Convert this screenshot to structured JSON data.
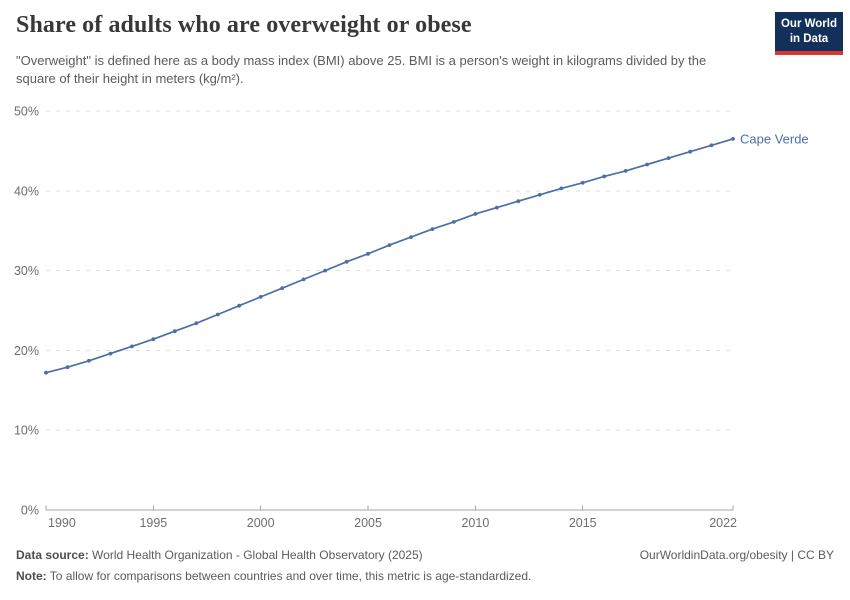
{
  "header": {
    "title": "Share of adults who are overweight or obese",
    "subtitle": "\"Overweight\" is defined here as a body mass index (BMI) above 25. BMI is a person's weight in kilograms divided by the square of their height in meters (kg/m²).",
    "logo": {
      "line1": "Our World",
      "line2": "in Data"
    }
  },
  "chart_data": {
    "type": "line",
    "title": "Share of adults who are overweight or obese",
    "xlabel": "",
    "ylabel": "",
    "xlim": [
      1990,
      2022
    ],
    "ylim": [
      0,
      50
    ],
    "grid": "horizontal-dashed",
    "legend_position": "end-of-line-label",
    "x_ticks": [
      1990,
      1995,
      2000,
      2005,
      2010,
      2015,
      2022
    ],
    "y_ticks": [
      0,
      10,
      20,
      30,
      40,
      50
    ],
    "y_tick_suffix": "%",
    "series": [
      {
        "name": "Cape Verde",
        "color": "#4C6EA8",
        "x": [
          1990,
          1991,
          1992,
          1993,
          1994,
          1995,
          1996,
          1997,
          1998,
          1999,
          2000,
          2001,
          2002,
          2003,
          2004,
          2005,
          2006,
          2007,
          2008,
          2009,
          2010,
          2011,
          2012,
          2013,
          2014,
          2015,
          2016,
          2017,
          2018,
          2019,
          2020,
          2021,
          2022
        ],
        "values": [
          17.2,
          17.9,
          18.7,
          19.6,
          20.5,
          21.4,
          22.4,
          23.4,
          24.5,
          25.6,
          26.7,
          27.8,
          28.9,
          30.0,
          31.1,
          32.1,
          33.2,
          34.2,
          35.2,
          36.1,
          37.1,
          37.9,
          38.7,
          39.5,
          40.3,
          41.0,
          41.8,
          42.5,
          43.3,
          44.1,
          44.9,
          45.7,
          46.5
        ]
      }
    ],
    "end_label": "Cape Verde"
  },
  "footer": {
    "datasource_label": "Data source:",
    "datasource_text": " World Health Organization - Global Health Observatory (2025)",
    "note_label": "Note:",
    "note_text": " To allow for comparisons between countries and over time, this metric is age-standardized.",
    "rights": "OurWorldinData.org/obesity | CC BY"
  },
  "colors": {
    "line": "#4C6EA8",
    "entity_label": "#4C6EA8",
    "logo_bg": "#12305A",
    "logo_stripe": "#D7372E",
    "grid": "#DCDCDC",
    "axis_line": "#A3A3A3",
    "axis_text": "#6E6E6E",
    "title_text": "#383838",
    "subtitle_text": "#5B5B5B"
  }
}
